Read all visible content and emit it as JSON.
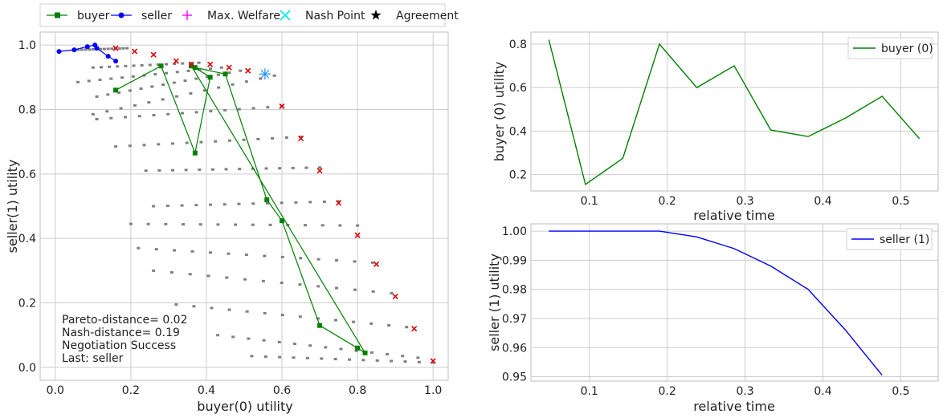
{
  "legend": {
    "items": [
      {
        "label": "buyer",
        "color": "#008000",
        "marker": "square-line"
      },
      {
        "label": "seller",
        "color": "#0000ff",
        "marker": "circle-line"
      },
      {
        "label": "Max. Welfare",
        "color": "#ff00ff",
        "marker": "plus"
      },
      {
        "label": "Nash Point",
        "color": "#00e5ee",
        "marker": "x"
      },
      {
        "label": "Agreement",
        "color": "#000000",
        "marker": "star"
      }
    ]
  },
  "annotations": {
    "pareto": "Pareto-distance= 0.02",
    "nash": "Nash-distance= 0.19",
    "status": "Negotiation Success",
    "last": "Last: seller"
  },
  "colors": {
    "buyer": "#008000",
    "seller": "#0000ff",
    "outcomes": "#808080",
    "pareto": "#dd0000",
    "nash": "#1e90ff",
    "grid": "#cccccc"
  },
  "chart_data": [
    {
      "type": "scatter",
      "xlabel": "buyer(0) utility",
      "ylabel": "seller(1) utility",
      "xlim": [
        -0.04,
        1.04
      ],
      "ylim": [
        -0.04,
        1.04
      ],
      "xticks": [
        "0.0",
        "0.2",
        "0.4",
        "0.6",
        "0.8",
        "1.0"
      ],
      "yticks": [
        "0.0",
        "0.2",
        "0.4",
        "0.6",
        "0.8",
        "1.0"
      ],
      "grid": true,
      "outcome_rows": [
        {
          "start": [
            0.06,
            0.985
          ],
          "end": [
            0.19,
            0.99
          ]
        },
        {
          "start": [
            0.1,
            0.93
          ],
          "end": [
            0.38,
            0.945
          ]
        },
        {
          "start": [
            0.06,
            0.885
          ],
          "end": [
            0.44,
            0.93
          ]
        },
        {
          "start": [
            0.11,
            0.84
          ],
          "end": [
            0.49,
            0.92
          ]
        },
        {
          "start": [
            0.1,
            0.785
          ],
          "end": [
            0.58,
            0.905
          ]
        },
        {
          "start": [
            0.11,
            0.77
          ],
          "end": [
            0.6,
            0.81
          ]
        },
        {
          "start": [
            0.16,
            0.685
          ],
          "end": [
            0.65,
            0.715
          ]
        },
        {
          "start": [
            0.24,
            0.61
          ],
          "end": [
            0.7,
            0.62
          ]
        },
        {
          "start": [
            0.26,
            0.5
          ],
          "end": [
            0.75,
            0.515
          ]
        },
        {
          "start": [
            0.2,
            0.445
          ],
          "end": [
            0.8,
            0.44
          ]
        },
        {
          "start": [
            0.22,
            0.37
          ],
          "end": [
            0.84,
            0.325
          ]
        },
        {
          "start": [
            0.26,
            0.3
          ],
          "end": [
            0.89,
            0.23
          ]
        },
        {
          "start": [
            0.32,
            0.195
          ],
          "end": [
            0.93,
            0.125
          ]
        },
        {
          "start": [
            0.43,
            0.1
          ],
          "end": [
            0.96,
            0.03
          ]
        },
        {
          "start": [
            0.52,
            0.035
          ],
          "end": [
            1.0,
            0.015
          ]
        }
      ],
      "pareto_points": [
        [
          0.16,
          0.99
        ],
        [
          0.21,
          0.98
        ],
        [
          0.26,
          0.97
        ],
        [
          0.32,
          0.95
        ],
        [
          0.36,
          0.94
        ],
        [
          0.41,
          0.94
        ],
        [
          0.46,
          0.93
        ],
        [
          0.51,
          0.92
        ],
        [
          0.6,
          0.81
        ],
        [
          0.65,
          0.71
        ],
        [
          0.7,
          0.61
        ],
        [
          0.75,
          0.51
        ],
        [
          0.8,
          0.41
        ],
        [
          0.85,
          0.32
        ],
        [
          0.9,
          0.22
        ],
        [
          0.95,
          0.12
        ],
        [
          1.0,
          0.02
        ]
      ],
      "nash_point": [
        0.555,
        0.91
      ],
      "series": [
        {
          "name": "buyer",
          "color": "#008000",
          "x": [
            0.16,
            0.28,
            0.37,
            0.41,
            0.37,
            0.45,
            0.56,
            0.6,
            0.7,
            0.8,
            0.82,
            0.36
          ],
          "y": [
            0.86,
            0.935,
            0.665,
            0.9,
            0.93,
            0.91,
            0.52,
            0.455,
            0.13,
            0.06,
            0.045,
            0.935
          ]
        },
        {
          "name": "seller",
          "color": "#0000ff",
          "x": [
            0.01,
            0.05,
            0.085,
            0.105,
            0.11,
            0.14,
            0.16
          ],
          "y": [
            0.98,
            0.985,
            0.995,
            1.0,
            0.99,
            0.965,
            0.95
          ]
        }
      ]
    },
    {
      "type": "line",
      "xlabel": "relative time",
      "ylabel": "buyer (0) utility",
      "xlim": [
        0.025,
        0.548
      ],
      "ylim": [
        0.125,
        0.855
      ],
      "xticks": [
        "0.1",
        "0.2",
        "0.3",
        "0.4",
        "0.5"
      ],
      "yticks": [
        "0.2",
        "0.4",
        "0.6",
        "0.8"
      ],
      "grid": true,
      "legend_position": "top-right",
      "series": [
        {
          "name": "buyer (0)",
          "color": "#008000",
          "x": [
            0.048,
            0.095,
            0.143,
            0.19,
            0.238,
            0.286,
            0.333,
            0.381,
            0.429,
            0.476,
            0.524
          ],
          "y": [
            0.82,
            0.155,
            0.275,
            0.8,
            0.6,
            0.7,
            0.405,
            0.375,
            0.46,
            0.56,
            0.365
          ]
        }
      ]
    },
    {
      "type": "line",
      "xlabel": "relative time",
      "ylabel": "seller (1) utility",
      "xlim": [
        0.025,
        0.548
      ],
      "ylim": [
        0.9485,
        1.0025
      ],
      "xticks": [
        "0.1",
        "0.2",
        "0.3",
        "0.4",
        "0.5"
      ],
      "yticks": [
        "0.95",
        "0.96",
        "0.97",
        "0.98",
        "0.99",
        "1.00"
      ],
      "grid": true,
      "legend_position": "top-right",
      "series": [
        {
          "name": "seller (1)",
          "color": "#0000ff",
          "x": [
            0.048,
            0.095,
            0.143,
            0.19,
            0.238,
            0.286,
            0.333,
            0.381,
            0.429,
            0.476
          ],
          "y": [
            1.0,
            1.0,
            1.0,
            1.0,
            0.998,
            0.994,
            0.988,
            0.98,
            0.966,
            0.9505
          ]
        }
      ]
    }
  ]
}
